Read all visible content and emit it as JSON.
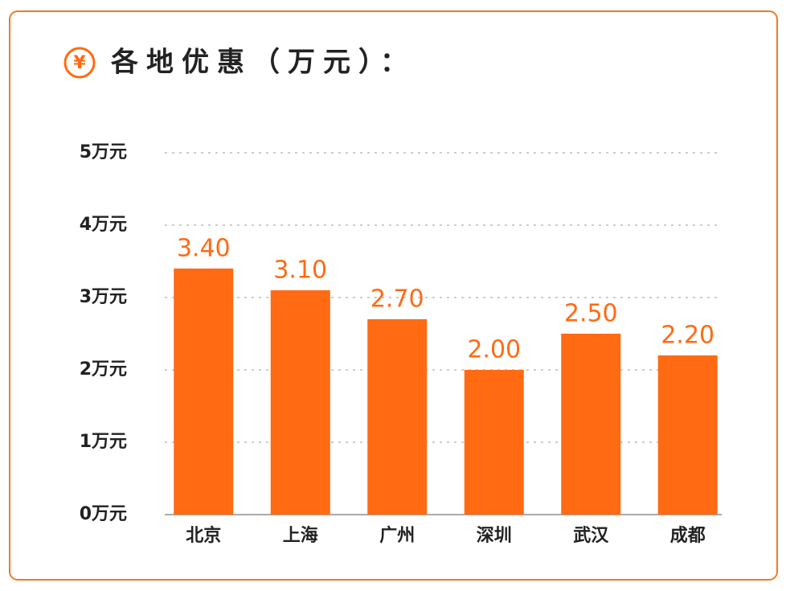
{
  "chart_data": {
    "type": "bar",
    "title_icon": "¥",
    "title": "各地优惠（万元）：",
    "categories": [
      "北京",
      "上海",
      "广州",
      "深圳",
      "武汉",
      "成都"
    ],
    "values": [
      3.4,
      3.1,
      2.7,
      2.0,
      2.5,
      2.2
    ],
    "value_labels": [
      "3.40",
      "3.10",
      "2.70",
      "2.00",
      "2.50",
      "2.20"
    ],
    "color": "#ff6a13",
    "ylim": [
      0,
      5
    ],
    "yticks": [
      {
        "value": 0,
        "label": "0万元"
      },
      {
        "value": 1,
        "label": "1万元"
      },
      {
        "value": 2,
        "label": "2万元"
      },
      {
        "value": 3,
        "label": "3万元"
      },
      {
        "value": 4,
        "label": "4万元"
      },
      {
        "value": 5,
        "label": "5万元"
      }
    ],
    "grid": true
  }
}
